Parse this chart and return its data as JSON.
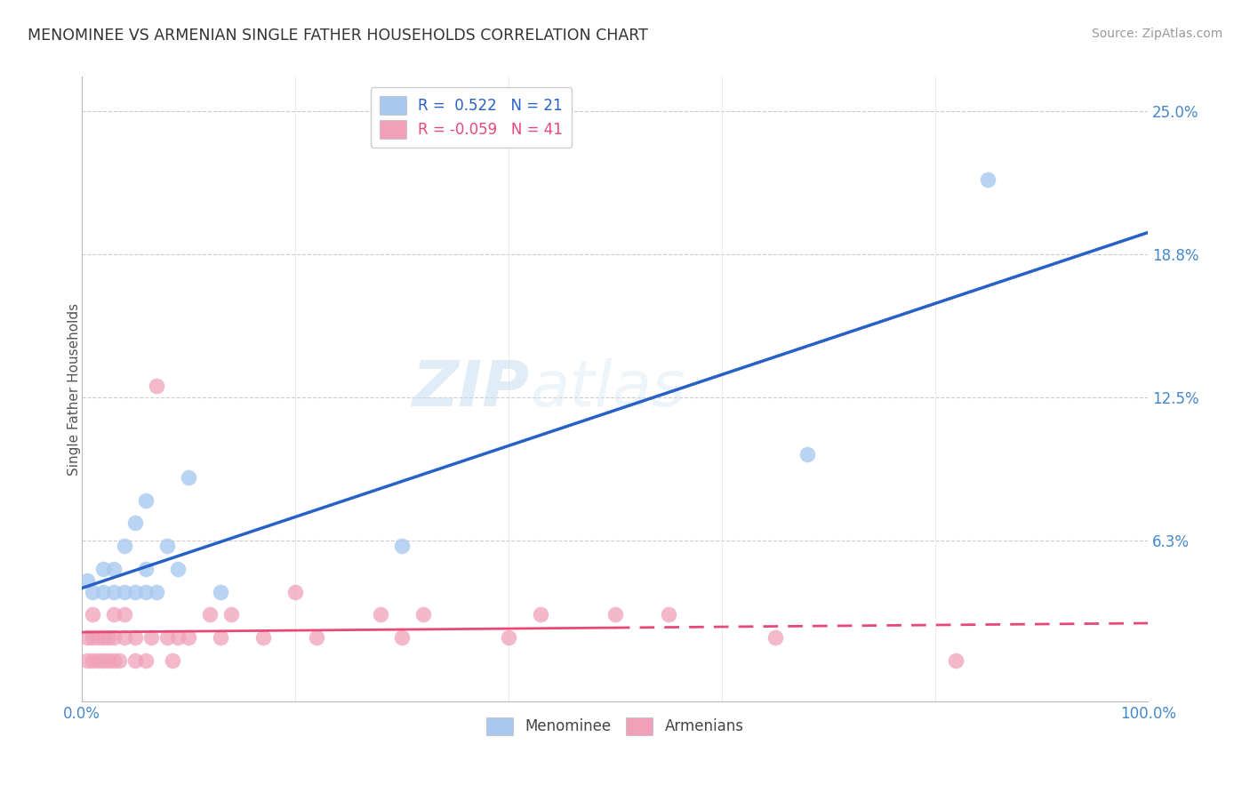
{
  "title": "MENOMINEE VS ARMENIAN SINGLE FATHER HOUSEHOLDS CORRELATION CHART",
  "source": "Source: ZipAtlas.com",
  "ylabel": "Single Father Households",
  "xlim": [
    0.0,
    1.0
  ],
  "ylim": [
    -0.008,
    0.265
  ],
  "yticks": [
    0.0,
    0.0625,
    0.125,
    0.1875,
    0.25
  ],
  "ytick_labels": [
    "",
    "6.3%",
    "12.5%",
    "18.8%",
    "25.0%"
  ],
  "menominee_R": 0.522,
  "menominee_N": 21,
  "armenian_R": -0.059,
  "armenian_N": 41,
  "menominee_color": "#a8c8f0",
  "armenian_color": "#f0a0b8",
  "menominee_line_color": "#2860c8",
  "armenian_line_color": "#e84878",
  "menominee_x": [
    0.005,
    0.01,
    0.02,
    0.02,
    0.03,
    0.03,
    0.04,
    0.04,
    0.05,
    0.05,
    0.06,
    0.06,
    0.06,
    0.07,
    0.08,
    0.09,
    0.1,
    0.13,
    0.3,
    0.68,
    0.85
  ],
  "menominee_y": [
    0.045,
    0.04,
    0.04,
    0.05,
    0.04,
    0.05,
    0.04,
    0.06,
    0.04,
    0.07,
    0.04,
    0.05,
    0.08,
    0.04,
    0.06,
    0.05,
    0.09,
    0.04,
    0.06,
    0.1,
    0.22
  ],
  "armenian_x": [
    0.005,
    0.005,
    0.01,
    0.01,
    0.01,
    0.015,
    0.015,
    0.02,
    0.02,
    0.025,
    0.025,
    0.03,
    0.03,
    0.03,
    0.035,
    0.04,
    0.04,
    0.05,
    0.05,
    0.06,
    0.065,
    0.07,
    0.08,
    0.085,
    0.09,
    0.1,
    0.12,
    0.13,
    0.14,
    0.17,
    0.2,
    0.22,
    0.28,
    0.3,
    0.32,
    0.4,
    0.43,
    0.5,
    0.55,
    0.65,
    0.82
  ],
  "armenian_y": [
    0.01,
    0.02,
    0.01,
    0.02,
    0.03,
    0.01,
    0.02,
    0.01,
    0.02,
    0.01,
    0.02,
    0.01,
    0.02,
    0.03,
    0.01,
    0.02,
    0.03,
    0.01,
    0.02,
    0.01,
    0.02,
    0.13,
    0.02,
    0.01,
    0.02,
    0.02,
    0.03,
    0.02,
    0.03,
    0.02,
    0.04,
    0.02,
    0.03,
    0.02,
    0.03,
    0.02,
    0.03,
    0.03,
    0.03,
    0.02,
    0.01
  ]
}
